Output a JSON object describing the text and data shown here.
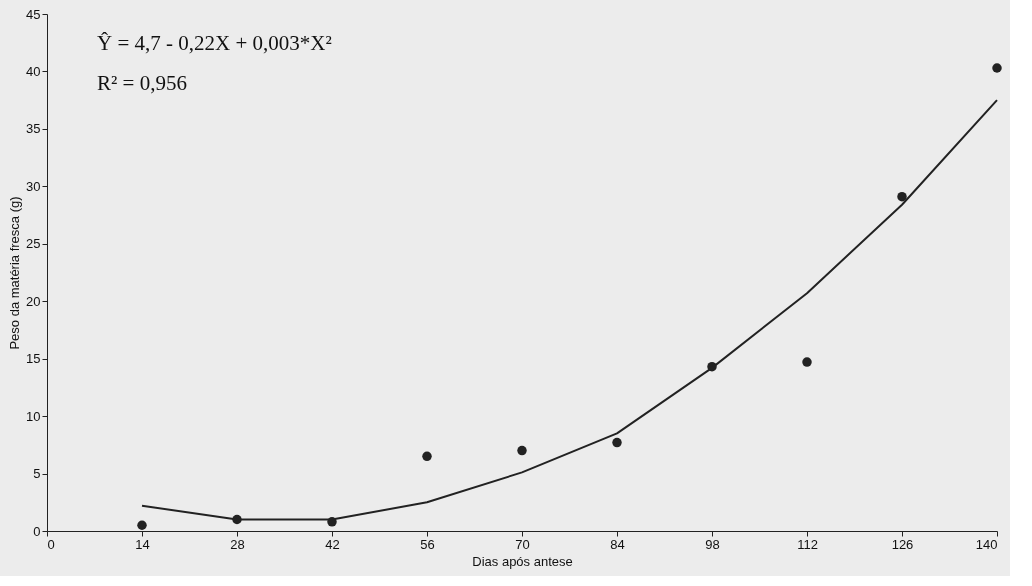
{
  "chart_data": {
    "type": "scatter",
    "xlabel": "Dias após antese",
    "ylabel": "Peso da matéria fresca (g)",
    "x": [
      14,
      28,
      42,
      56,
      70,
      84,
      98,
      112,
      126,
      140
    ],
    "series": [
      {
        "color": "#222222",
        "marker": "circle",
        "values": [
          0.5,
          1.0,
          0.8,
          6.5,
          7.0,
          7.7,
          14.3,
          14.7,
          29.1,
          40.3
        ]
      },
      {
        "type": "line",
        "color": "#222222",
        "marker": "none",
        "line_style": "solid",
        "values": [
          2.2,
          1.0,
          1.0,
          2.5,
          5.1,
          8.5,
          14.2,
          20.7,
          28.4,
          37.5
        ]
      }
    ],
    "xlim": [
      0,
      140
    ],
    "xticks": [
      0,
      14,
      28,
      42,
      56,
      70,
      84,
      98,
      112,
      126,
      140
    ],
    "ylim": [
      0,
      45
    ],
    "yticks": [
      0,
      5,
      10,
      15,
      20,
      25,
      30,
      35,
      40,
      45
    ],
    "grid": false,
    "annotations": [
      "Ŷ = 4,7 - 0,22X + 0,003*X²",
      "R² = 0,956"
    ]
  }
}
